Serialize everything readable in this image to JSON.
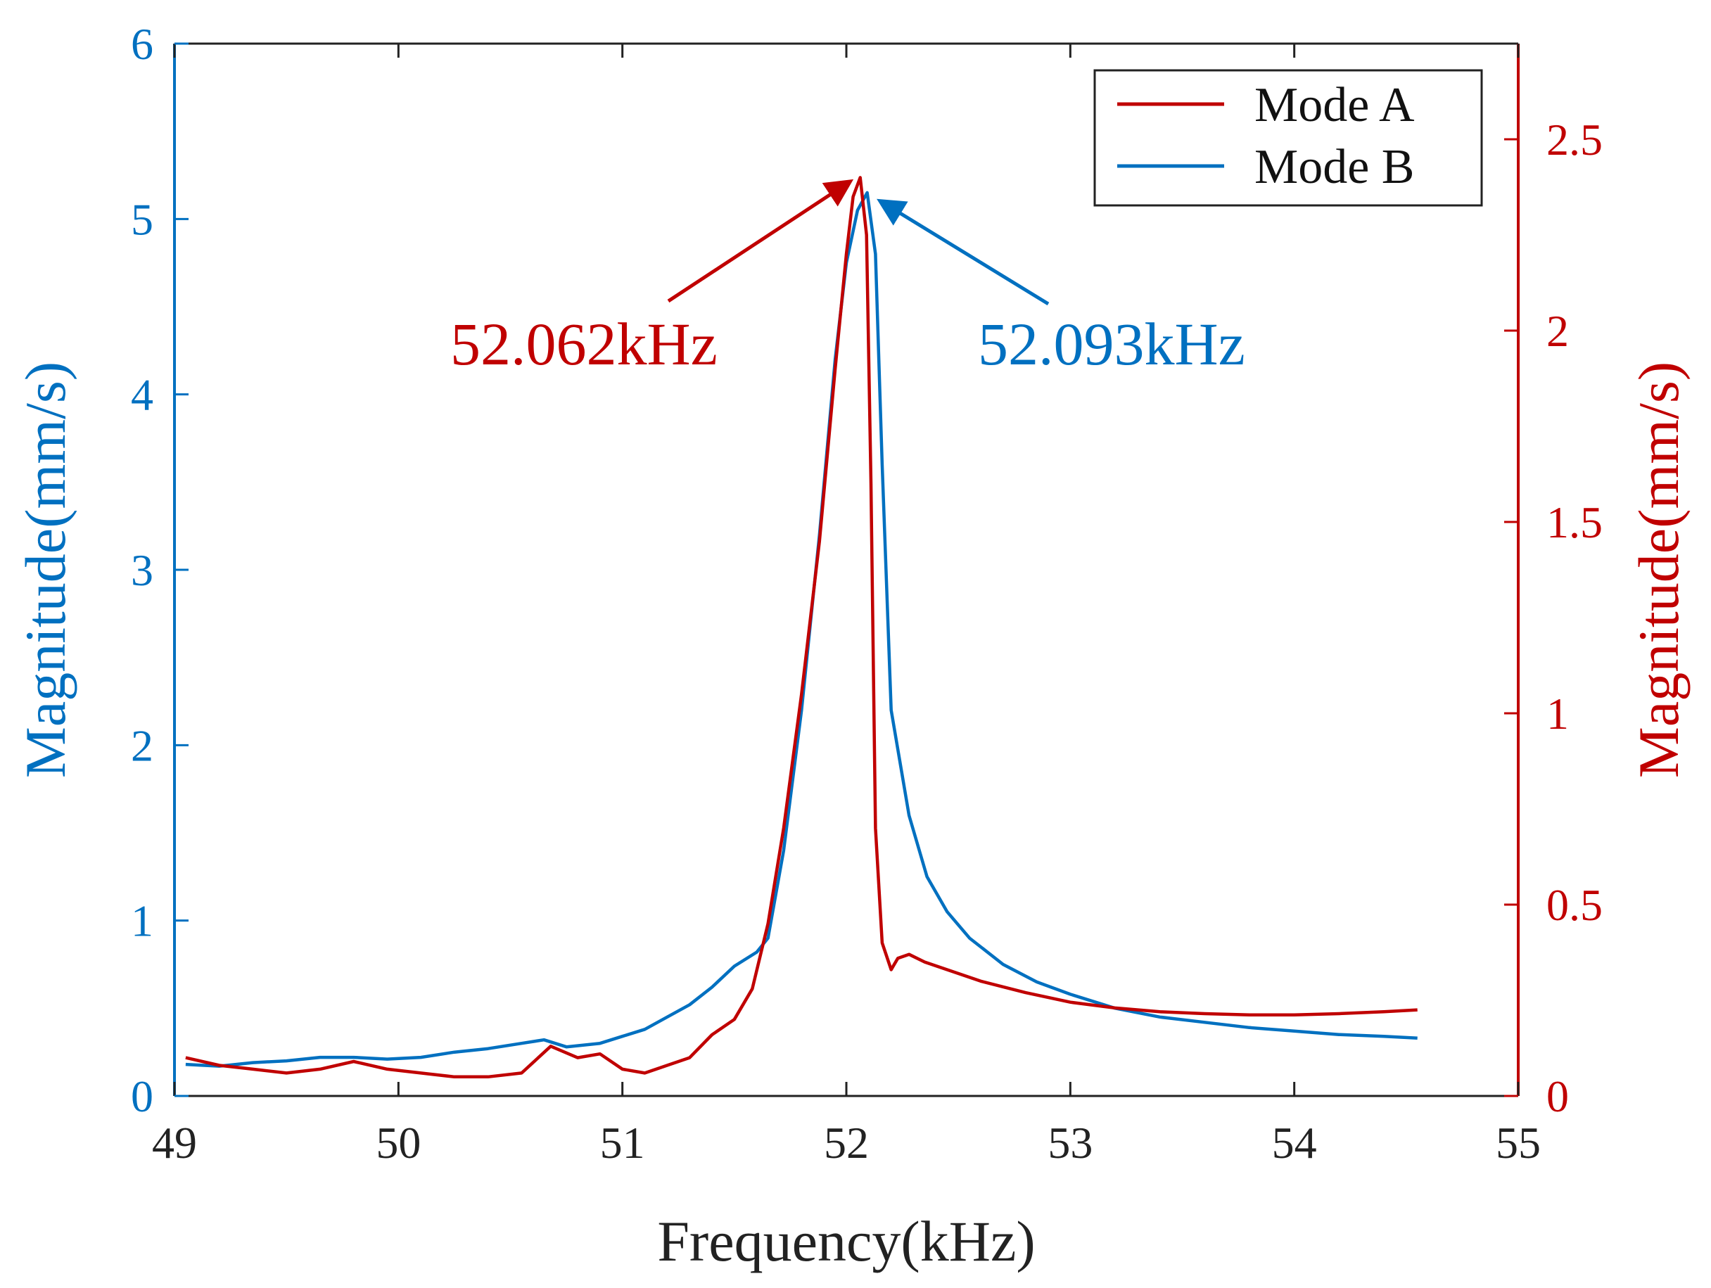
{
  "chart_data": {
    "type": "line",
    "title": "",
    "xlabel": "Frequency(kHz)",
    "ylabel_left": "Magnitude(mm/s)",
    "ylabel_right": "Magnitude(mm/s)",
    "xlim": [
      49,
      55
    ],
    "ylim_left": [
      0,
      6
    ],
    "ylim_right": [
      0,
      2.75
    ],
    "x_ticks": [
      "49",
      "50",
      "51",
      "52",
      "53",
      "54",
      "55"
    ],
    "y_left_ticks": [
      "0",
      "1",
      "2",
      "3",
      "4",
      "5",
      "6"
    ],
    "y_right_ticks": [
      "0",
      "0.5",
      "1",
      "1.5",
      "2",
      "2.5"
    ],
    "grid": false,
    "legend_position": "top-right",
    "colors": {
      "mode_a": "#c00000",
      "mode_b": "#0070c0",
      "axis": "#222222"
    },
    "series": [
      {
        "name": "Mode A",
        "axis": "right",
        "x": [
          49.05,
          49.2,
          49.35,
          49.5,
          49.65,
          49.8,
          49.95,
          50.1,
          50.25,
          50.4,
          50.55,
          50.68,
          50.8,
          50.9,
          51.0,
          51.1,
          51.2,
          51.3,
          51.4,
          51.5,
          51.58,
          51.65,
          51.72,
          51.8,
          51.88,
          51.95,
          52.0,
          52.03,
          52.062,
          52.09,
          52.11,
          52.13,
          52.16,
          52.2,
          52.23,
          52.28,
          52.35,
          52.45,
          52.6,
          52.8,
          53.0,
          53.2,
          53.4,
          53.6,
          53.8,
          54.0,
          54.2,
          54.4,
          54.55
        ],
        "values": [
          0.1,
          0.08,
          0.07,
          0.06,
          0.07,
          0.09,
          0.07,
          0.06,
          0.05,
          0.05,
          0.06,
          0.13,
          0.1,
          0.11,
          0.07,
          0.06,
          0.08,
          0.1,
          0.16,
          0.2,
          0.28,
          0.45,
          0.7,
          1.05,
          1.45,
          1.9,
          2.2,
          2.35,
          2.4,
          2.25,
          1.6,
          0.7,
          0.4,
          0.33,
          0.36,
          0.37,
          0.35,
          0.33,
          0.3,
          0.27,
          0.245,
          0.23,
          0.22,
          0.215,
          0.212,
          0.212,
          0.215,
          0.22,
          0.225
        ]
      },
      {
        "name": "Mode B",
        "axis": "left",
        "x": [
          49.05,
          49.2,
          49.35,
          49.5,
          49.65,
          49.8,
          49.95,
          50.1,
          50.25,
          50.4,
          50.55,
          50.65,
          50.75,
          50.9,
          51.0,
          51.1,
          51.2,
          51.3,
          51.4,
          51.5,
          51.6,
          51.65,
          51.72,
          51.8,
          51.88,
          51.95,
          52.0,
          52.05,
          52.093,
          52.13,
          52.16,
          52.2,
          52.28,
          52.36,
          52.45,
          52.55,
          52.7,
          52.85,
          53.0,
          53.2,
          53.4,
          53.6,
          53.8,
          54.0,
          54.2,
          54.4,
          54.55
        ],
        "values": [
          0.18,
          0.17,
          0.19,
          0.2,
          0.22,
          0.22,
          0.21,
          0.22,
          0.25,
          0.27,
          0.3,
          0.32,
          0.28,
          0.3,
          0.34,
          0.38,
          0.45,
          0.52,
          0.62,
          0.74,
          0.82,
          0.9,
          1.4,
          2.2,
          3.2,
          4.2,
          4.75,
          5.05,
          5.15,
          4.8,
          3.6,
          2.2,
          1.6,
          1.25,
          1.05,
          0.9,
          0.75,
          0.65,
          0.58,
          0.5,
          0.45,
          0.42,
          0.39,
          0.37,
          0.35,
          0.34,
          0.33
        ]
      }
    ],
    "annotations": [
      {
        "text": "52.062kHz",
        "series": "Mode A",
        "x": 52.062,
        "y": 2.4,
        "axis": "right"
      },
      {
        "text": "52.093kHz",
        "series": "Mode B",
        "x": 52.093,
        "y": 5.15,
        "axis": "left"
      }
    ]
  }
}
